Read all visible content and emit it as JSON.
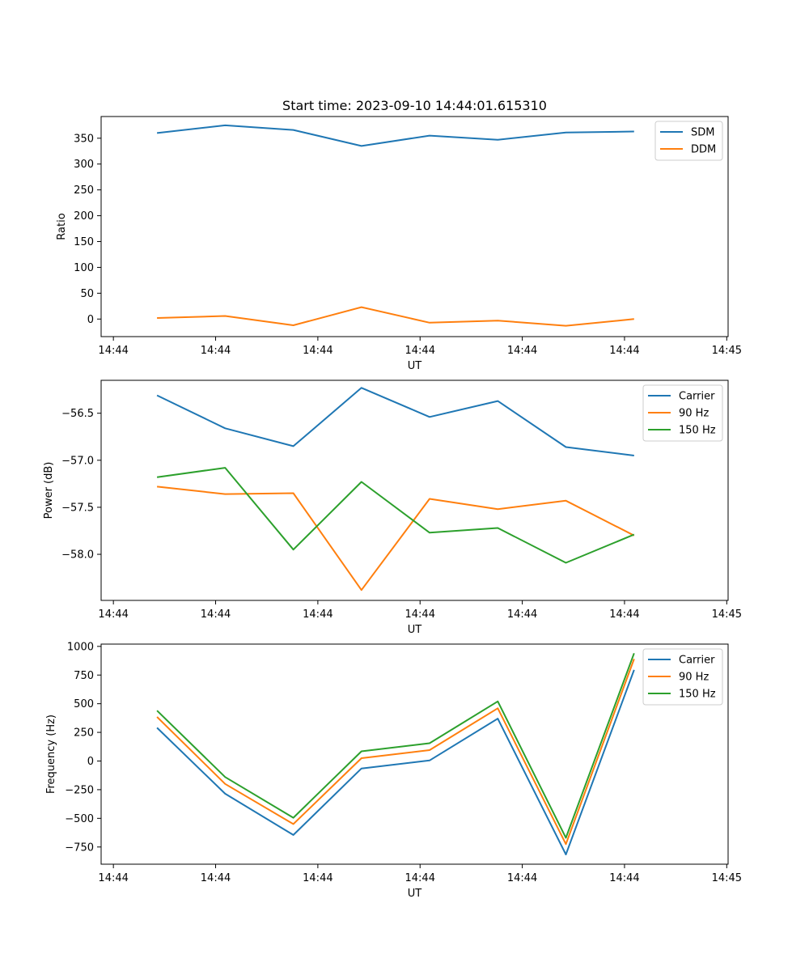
{
  "figure_title": "Start time: 2023-09-10 14:44:01.615310",
  "colors": {
    "blue": "#1f77b4",
    "orange": "#ff7f0e",
    "green": "#2ca02c"
  },
  "chart_data": [
    {
      "type": "line",
      "title": "Start time: 2023-09-10 14:44:01.615310",
      "xlabel": "UT",
      "ylabel": "Ratio",
      "x": [
        1.0,
        2.0,
        3.0,
        4.0,
        5.0,
        6.0,
        7.0,
        8.0
      ],
      "xlim": [
        0.18,
        9.38
      ],
      "x_ticks": [
        0.36,
        1.86,
        3.36,
        4.86,
        6.36,
        7.86,
        9.36
      ],
      "x_tick_labels": [
        "14:44",
        "14:44",
        "14:44",
        "14:44",
        "14:44",
        "14:44",
        "14:45"
      ],
      "ylim": [
        -34,
        392
      ],
      "y_ticks": [
        0,
        50,
        100,
        150,
        200,
        250,
        300,
        350
      ],
      "y_tick_labels": [
        "0",
        "50",
        "100",
        "150",
        "200",
        "250",
        "300",
        "350"
      ],
      "legend_position": "top-right",
      "series": [
        {
          "name": "SDM",
          "color": "#1f77b4",
          "values": [
            360,
            375,
            366,
            335,
            355,
            347,
            361,
            363
          ]
        },
        {
          "name": "DDM",
          "color": "#ff7f0e",
          "values": [
            2,
            6,
            -12,
            23,
            -7,
            -3,
            -13,
            0
          ]
        }
      ]
    },
    {
      "type": "line",
      "title": "",
      "xlabel": "UT",
      "ylabel": "Power (dB)",
      "x": [
        1.0,
        2.0,
        3.0,
        4.0,
        5.0,
        6.0,
        7.0,
        8.0
      ],
      "xlim": [
        0.18,
        9.38
      ],
      "x_ticks": [
        0.36,
        1.86,
        3.36,
        4.86,
        6.36,
        7.86,
        9.36
      ],
      "x_tick_labels": [
        "14:44",
        "14:44",
        "14:44",
        "14:44",
        "14:44",
        "14:44",
        "14:45"
      ],
      "ylim": [
        -58.49,
        -56.15
      ],
      "y_ticks": [
        -56.5,
        -57.0,
        -57.5,
        -58.0
      ],
      "y_tick_labels": [
        "−56.5",
        "−57.0",
        "−57.5",
        "−58.0"
      ],
      "legend_position": "top-right",
      "series": [
        {
          "name": "Carrier",
          "color": "#1f77b4",
          "values": [
            -56.31,
            -56.66,
            -56.85,
            -56.23,
            -56.54,
            -56.37,
            -56.86,
            -56.95
          ]
        },
        {
          "name": "90 Hz",
          "color": "#ff7f0e",
          "values": [
            -57.28,
            -57.36,
            -57.35,
            -58.38,
            -57.41,
            -57.52,
            -57.43,
            -57.8
          ]
        },
        {
          "name": "150 Hz",
          "color": "#2ca02c",
          "values": [
            -57.18,
            -57.08,
            -57.95,
            -57.23,
            -57.77,
            -57.72,
            -58.09,
            -57.79
          ]
        }
      ]
    },
    {
      "type": "line",
      "title": "",
      "xlabel": "UT",
      "ylabel": "Frequency (Hz)",
      "x": [
        1.0,
        2.0,
        3.0,
        4.0,
        5.0,
        6.0,
        7.0,
        8.0
      ],
      "xlim": [
        0.18,
        9.38
      ],
      "x_ticks": [
        0.36,
        1.86,
        3.36,
        4.86,
        6.36,
        7.86,
        9.36
      ],
      "x_tick_labels": [
        "14:44",
        "14:44",
        "14:44",
        "14:44",
        "14:44",
        "14:44",
        "14:45"
      ],
      "ylim": [
        -900,
        1020
      ],
      "y_ticks": [
        1000,
        750,
        500,
        250,
        0,
        -250,
        -500,
        -750
      ],
      "y_tick_labels": [
        "1000",
        "750",
        "500",
        "250",
        "0",
        "−250",
        "−500",
        "−750"
      ],
      "legend_position": "top-right",
      "series": [
        {
          "name": "Carrier",
          "color": "#1f77b4",
          "values": [
            290,
            -285,
            -645,
            -65,
            5,
            370,
            -815,
            795
          ]
        },
        {
          "name": "90 Hz",
          "color": "#ff7f0e",
          "values": [
            385,
            -200,
            -550,
            25,
            95,
            460,
            -725,
            890
          ]
        },
        {
          "name": "150 Hz",
          "color": "#2ca02c",
          "values": [
            440,
            -140,
            -495,
            85,
            155,
            520,
            -670,
            940
          ]
        }
      ]
    }
  ]
}
